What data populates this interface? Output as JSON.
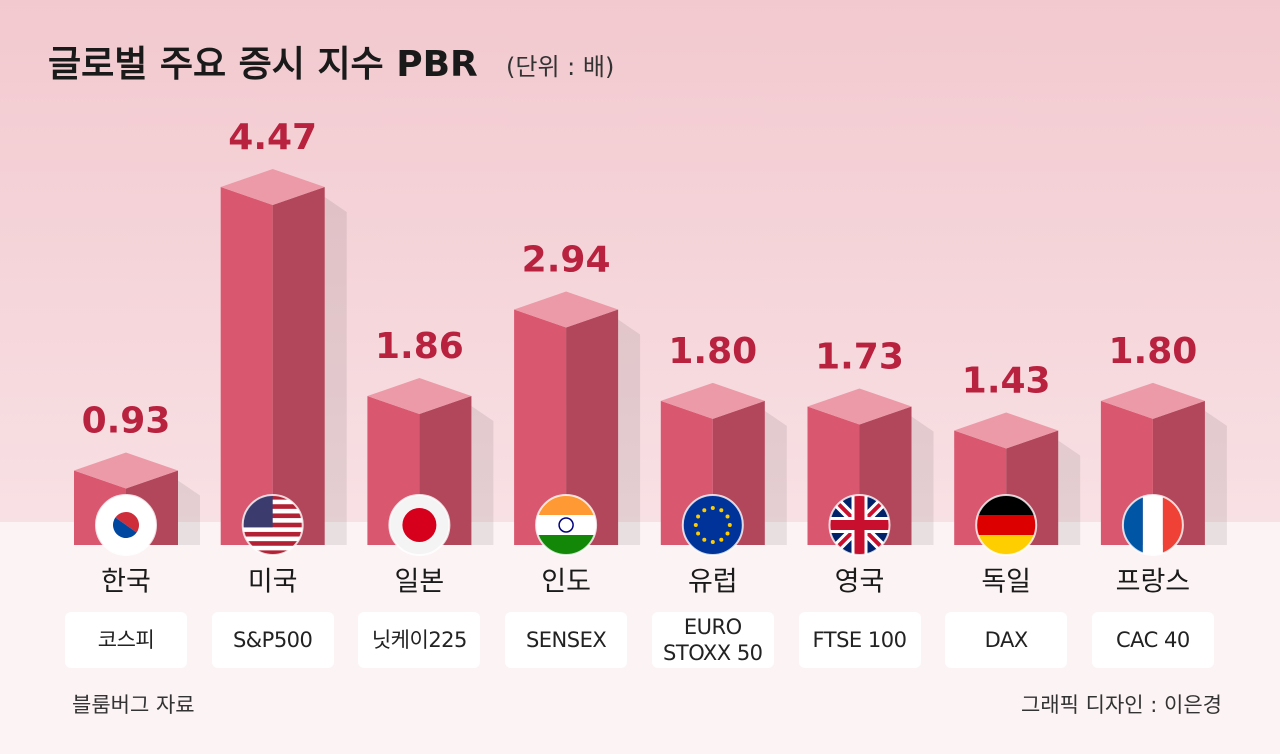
{
  "chart_data": {
    "type": "bar3d",
    "title": "글로벌 주요 증시 지수 PBR",
    "subtitle": "(단위 : 배)",
    "categories": [
      "한국",
      "미국",
      "일본",
      "인도",
      "유럽",
      "영국",
      "독일",
      "프랑스"
    ],
    "index_names": [
      "코스피",
      "S&P500",
      "닛케이225",
      "SENSEX",
      "EURO STOXX 50",
      "FTSE 100",
      "DAX",
      "CAC 40"
    ],
    "values": [
      0.93,
      4.47,
      1.86,
      2.94,
      1.8,
      1.73,
      1.43,
      1.8
    ],
    "value_labels": [
      "0.93",
      "4.47",
      "1.86",
      "2.94",
      "1.80",
      "1.73",
      "1.43",
      "1.80"
    ],
    "color": "#d9576f",
    "label_color": "#b8223f",
    "source": "블룸버그 자료",
    "credit": "그래픽 디자인 : 이은경"
  }
}
